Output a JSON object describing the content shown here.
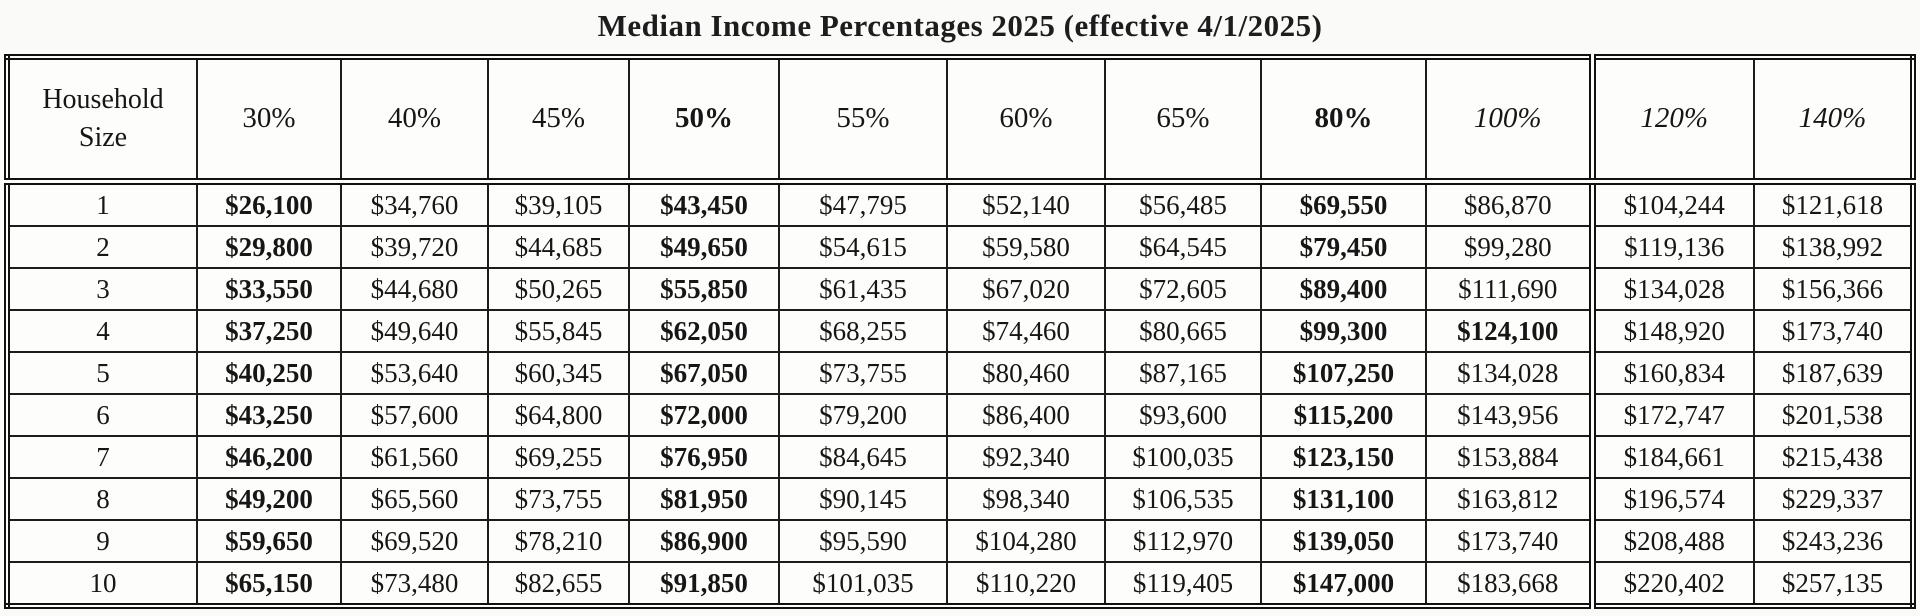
{
  "title": "Median Income Percentages 2025 (effective 4/1/2025)",
  "table": {
    "household_size_label": "Household Size",
    "columns": [
      {
        "label": "30%",
        "style": "normal"
      },
      {
        "label": "40%",
        "style": "normal"
      },
      {
        "label": "45%",
        "style": "normal"
      },
      {
        "label": "50%",
        "style": "bold"
      },
      {
        "label": "55%",
        "style": "normal"
      },
      {
        "label": "60%",
        "style": "normal"
      },
      {
        "label": "65%",
        "style": "normal"
      },
      {
        "label": "80%",
        "style": "bold"
      },
      {
        "label": "100%",
        "style": "italic"
      },
      {
        "label": "120%",
        "style": "italic"
      },
      {
        "label": "140%",
        "style": "italic"
      }
    ],
    "bold_value_indexes": [
      0,
      3,
      7
    ],
    "extra_bold_cells": [
      [
        3,
        8
      ]
    ],
    "double_rule_before_value_index": 9,
    "rows": [
      {
        "household_size": "1",
        "values": [
          "$26,100",
          "$34,760",
          "$39,105",
          "$43,450",
          "$47,795",
          "$52,140",
          "$56,485",
          "$69,550",
          "$86,870",
          "$104,244",
          "$121,618"
        ]
      },
      {
        "household_size": "2",
        "values": [
          "$29,800",
          "$39,720",
          "$44,685",
          "$49,650",
          "$54,615",
          "$59,580",
          "$64,545",
          "$79,450",
          "$99,280",
          "$119,136",
          "$138,992"
        ]
      },
      {
        "household_size": "3",
        "values": [
          "$33,550",
          "$44,680",
          "$50,265",
          "$55,850",
          "$61,435",
          "$67,020",
          "$72,605",
          "$89,400",
          "$111,690",
          "$134,028",
          "$156,366"
        ]
      },
      {
        "household_size": "4",
        "values": [
          "$37,250",
          "$49,640",
          "$55,845",
          "$62,050",
          "$68,255",
          "$74,460",
          "$80,665",
          "$99,300",
          "$124,100",
          "$148,920",
          "$173,740"
        ]
      },
      {
        "household_size": "5",
        "values": [
          "$40,250",
          "$53,640",
          "$60,345",
          "$67,050",
          "$73,755",
          "$80,460",
          "$87,165",
          "$107,250",
          "$134,028",
          "$160,834",
          "$187,639"
        ]
      },
      {
        "household_size": "6",
        "values": [
          "$43,250",
          "$57,600",
          "$64,800",
          "$72,000",
          "$79,200",
          "$86,400",
          "$93,600",
          "$115,200",
          "$143,956",
          "$172,747",
          "$201,538"
        ]
      },
      {
        "household_size": "7",
        "values": [
          "$46,200",
          "$61,560",
          "$69,255",
          "$76,950",
          "$84,645",
          "$92,340",
          "$100,035",
          "$123,150",
          "$153,884",
          "$184,661",
          "$215,438"
        ]
      },
      {
        "household_size": "8",
        "values": [
          "$49,200",
          "$65,560",
          "$73,755",
          "$81,950",
          "$90,145",
          "$98,340",
          "$106,535",
          "$131,100",
          "$163,812",
          "$196,574",
          "$229,337"
        ]
      },
      {
        "household_size": "9",
        "values": [
          "$59,650",
          "$69,520",
          "$78,210",
          "$86,900",
          "$95,590",
          "$104,280",
          "$112,970",
          "$139,050",
          "$173,740",
          "$208,488",
          "$243,236"
        ]
      },
      {
        "household_size": "10",
        "values": [
          "$65,150",
          "$73,480",
          "$82,655",
          "$91,850",
          "$101,035",
          "$110,220",
          "$119,405",
          "$147,000",
          "$183,668",
          "$220,402",
          "$257,135"
        ]
      }
    ]
  }
}
